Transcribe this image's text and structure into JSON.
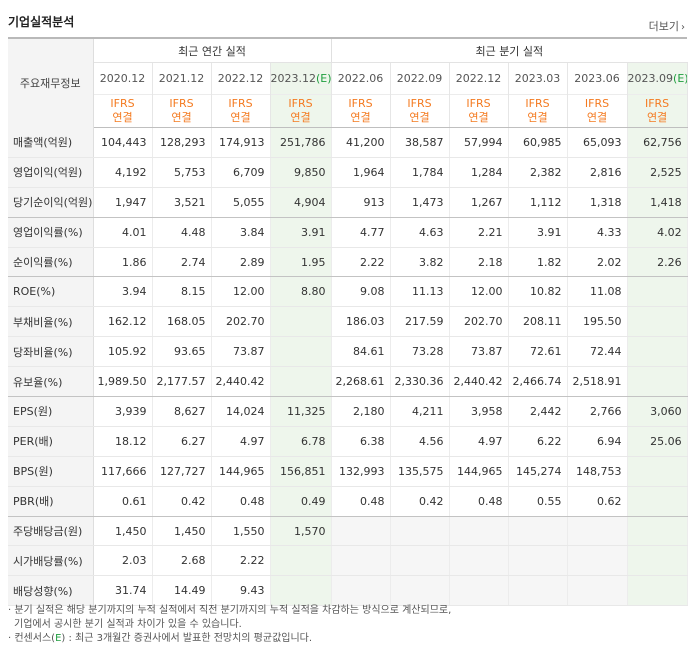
{
  "title": "기업실적분석",
  "more_label": "더보기",
  "more_icon": "chevron-right-icon",
  "row_header": "주요재무정보",
  "groups": [
    "최근 연간 실적",
    "최근 분기 실적"
  ],
  "periods": [
    "2020.12",
    "2021.12",
    "2022.12",
    "2023.12",
    "2022.06",
    "2022.09",
    "2022.12",
    "2023.03",
    "2023.06",
    "2023.09"
  ],
  "period_estimates": [
    false,
    false,
    false,
    true,
    false,
    false,
    false,
    false,
    false,
    true
  ],
  "estimate_mark": "(E)",
  "ifrs": [
    "IFRS",
    "연결"
  ],
  "colors": {
    "ifrs": "#f47a20",
    "estimate_bg": "#eef6ec",
    "estimate_mark": "#1e9e3e",
    "label_bg": "#f4f4f4"
  },
  "rows": [
    {
      "label": "매출액(억원)",
      "values": [
        "104,443",
        "128,293",
        "174,913",
        "251,786",
        "41,200",
        "38,587",
        "57,994",
        "60,985",
        "65,093",
        "62,756"
      ]
    },
    {
      "label": "영업이익(억원)",
      "values": [
        "4,192",
        "5,753",
        "6,709",
        "9,850",
        "1,964",
        "1,784",
        "1,284",
        "2,382",
        "2,816",
        "2,525"
      ]
    },
    {
      "label": "당기순이익(억원)",
      "values": [
        "1,947",
        "3,521",
        "5,055",
        "4,904",
        "913",
        "1,473",
        "1,267",
        "1,112",
        "1,318",
        "1,418"
      ]
    },
    {
      "label": "영업이익률(%)",
      "values": [
        "4.01",
        "4.48",
        "3.84",
        "3.91",
        "4.77",
        "4.63",
        "2.21",
        "3.91",
        "4.33",
        "4.02"
      ]
    },
    {
      "label": "순이익률(%)",
      "values": [
        "1.86",
        "2.74",
        "2.89",
        "1.95",
        "2.22",
        "3.82",
        "2.18",
        "1.82",
        "2.02",
        "2.26"
      ]
    },
    {
      "label": "ROE(%)",
      "values": [
        "3.94",
        "8.15",
        "12.00",
        "8.80",
        "9.08",
        "11.13",
        "12.00",
        "10.82",
        "11.08",
        ""
      ]
    },
    {
      "label": "부채비율(%)",
      "values": [
        "162.12",
        "168.05",
        "202.70",
        "",
        "186.03",
        "217.59",
        "202.70",
        "208.11",
        "195.50",
        ""
      ]
    },
    {
      "label": "당좌비율(%)",
      "values": [
        "105.92",
        "93.65",
        "73.87",
        "",
        "84.61",
        "73.28",
        "73.87",
        "72.61",
        "72.44",
        ""
      ]
    },
    {
      "label": "유보율(%)",
      "values": [
        "1,989.50",
        "2,177.57",
        "2,440.42",
        "",
        "2,268.61",
        "2,330.36",
        "2,440.42",
        "2,466.74",
        "2,518.91",
        ""
      ]
    },
    {
      "label": "EPS(원)",
      "values": [
        "3,939",
        "8,627",
        "14,024",
        "11,325",
        "2,180",
        "4,211",
        "3,958",
        "2,442",
        "2,766",
        "3,060"
      ]
    },
    {
      "label": "PER(배)",
      "values": [
        "18.12",
        "6.27",
        "4.97",
        "6.78",
        "6.38",
        "4.56",
        "4.97",
        "6.22",
        "6.94",
        "25.06"
      ]
    },
    {
      "label": "BPS(원)",
      "values": [
        "117,666",
        "127,727",
        "144,965",
        "156,851",
        "132,993",
        "135,575",
        "144,965",
        "145,274",
        "148,753",
        ""
      ]
    },
    {
      "label": "PBR(배)",
      "values": [
        "0.61",
        "0.42",
        "0.48",
        "0.49",
        "0.48",
        "0.42",
        "0.48",
        "0.55",
        "0.62",
        ""
      ]
    },
    {
      "label": "주당배당금(원)",
      "values": [
        "1,450",
        "1,450",
        "1,550",
        "1,570",
        "",
        "",
        "",
        "",
        "",
        ""
      ]
    },
    {
      "label": "시가배당률(%)",
      "values": [
        "2.03",
        "2.68",
        "2.22",
        "",
        "",
        "",
        "",
        "",
        "",
        ""
      ]
    },
    {
      "label": "배당성향(%)",
      "values": [
        "31.74",
        "14.49",
        "9.43",
        "",
        "",
        "",
        "",
        "",
        "",
        ""
      ]
    }
  ],
  "notes": {
    "line1": "· 분기 실적은 해당 분기까지의 누적 실적에서 직전 분기까지의 누적 실적을 차감하는 방식으로 계산되므로,",
    "line2": "기업에서 공시한 분기 실적과 차이가 있을 수 있습니다.",
    "line3_pre": "· 컨센서스(",
    "line3_e": "E",
    "line3_post": ") : 최근 3개월간 증권사에서 발표한 전망치의 평균값입니다."
  }
}
